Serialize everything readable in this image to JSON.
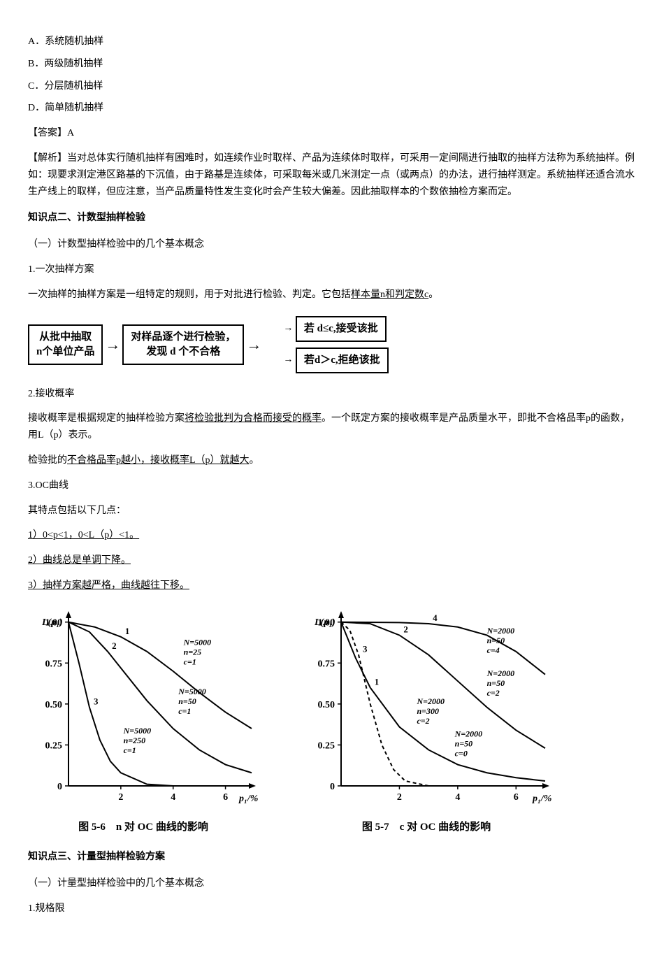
{
  "options": [
    {
      "label": "A．",
      "text": "系统随机抽样"
    },
    {
      "label": "B．",
      "text": "两级随机抽样"
    },
    {
      "label": "C．",
      "text": "分层随机抽样"
    },
    {
      "label": "D．",
      "text": "简单随机抽样"
    }
  ],
  "answer_label": "【答案】",
  "answer_value": "A",
  "analysis_label": "【解析】",
  "analysis_text": "当对总体实行随机抽样有困难时，如连续作业时取样、产品为连续体时取样，可采用一定间隔进行抽取的抽样方法称为系统抽样。例如：现要求测定港区路基的下沉值，由于路基是连续体，可采取每米或几米测定一点（或两点）的办法，进行抽样测定。系统抽样还适合流水生产线上的取样，但应注意，当产品质量特性发生变化时会产生较大偏差。因此抽取样本的个数依抽检方案而定。",
  "kp2_title": "知识点二、计数型抽样检验",
  "kp2_sub1": "（一）计数型抽样检验中的几个基本概念",
  "item1_num": "1.",
  "item1_title": "一次抽样方案",
  "item1_desc_a": "一次抽样的抽样方案是一组特定的规则，用于对批进行检验、判定。它包括",
  "item1_desc_b": "样本量n和判定数c",
  "item1_desc_c": "。",
  "flow": {
    "box1_l1": "从批中抽取",
    "box1_l2": "n个单位产品",
    "box2_l1": "对样品逐个进行检验，",
    "box2_l2": "发现 d 个不合格",
    "box3": "若 d≤c,接受该批",
    "box4": "若d＞c,拒绝该批"
  },
  "item2_num": "2.",
  "item2_title": "接收概率",
  "item2_p1a": "接收概率是根据规定的抽样检验方案",
  "item2_p1b": "将检验批判为合格而接受的概率",
  "item2_p1c": "。一个既定方案的接收概率是产品质量水平，即批不合格品率p的函数，用L（p）表示。",
  "item2_p2a": "检验批的",
  "item2_p2b": "不合格品率p越小，接收概率L（p）就越大",
  "item2_p2c": "。",
  "item3_num": "3.",
  "item3_title": "OC曲线",
  "item3_intro": "其特点包括以下几点：",
  "oc_pts": [
    "1）0<p<1，0<L（p）<1。",
    "2）曲线总是单调下降。",
    "3）抽样方案越严格，曲线越往下移。"
  ],
  "fig56_caption": "图 5-6　n 对 OC 曲线的影响",
  "fig57_caption": "图 5-7　c 对 OC 曲线的影响",
  "chart56": {
    "type": "line",
    "xlabel": "p₁/%",
    "ylabel": "L(p₁)",
    "xlim": [
      0,
      7
    ],
    "ylim": [
      0,
      1.05
    ],
    "xticks": [
      2,
      4,
      6
    ],
    "yticks": [
      0,
      0.25,
      0.5,
      0.75,
      1.0
    ],
    "line_color": "#000000",
    "axis_color": "#000000",
    "line_width": 2,
    "series": [
      {
        "label": "1",
        "annot": "N=5000\nn=25\nc=1",
        "annot_xy": [
          4.4,
          0.86
        ],
        "pts": [
          [
            0,
            1
          ],
          [
            1,
            0.97
          ],
          [
            2,
            0.91
          ],
          [
            3,
            0.82
          ],
          [
            4,
            0.7
          ],
          [
            5,
            0.57
          ],
          [
            6,
            0.45
          ],
          [
            7,
            0.35
          ]
        ]
      },
      {
        "label": "2",
        "annot": "N=5000\nn=50\nc=1",
        "annot_xy": [
          4.2,
          0.56
        ],
        "pts": [
          [
            0,
            1
          ],
          [
            0.8,
            0.94
          ],
          [
            1.5,
            0.82
          ],
          [
            2,
            0.72
          ],
          [
            3,
            0.52
          ],
          [
            4,
            0.35
          ],
          [
            5,
            0.22
          ],
          [
            6,
            0.13
          ],
          [
            7,
            0.08
          ]
        ]
      },
      {
        "label": "3",
        "annot": "N=5000\nn=250\nc=1",
        "annot_xy": [
          2.1,
          0.32
        ],
        "pts": [
          [
            0,
            1
          ],
          [
            0.4,
            0.75
          ],
          [
            0.8,
            0.48
          ],
          [
            1.2,
            0.28
          ],
          [
            1.6,
            0.15
          ],
          [
            2,
            0.08
          ],
          [
            3,
            0.01
          ],
          [
            4,
            0
          ]
        ]
      }
    ]
  },
  "chart57": {
    "type": "line",
    "xlabel": "p₁/%",
    "ylabel": "L(p₁)",
    "xlim": [
      0,
      7
    ],
    "ylim": [
      0,
      1.05
    ],
    "xticks": [
      2,
      4,
      6
    ],
    "yticks": [
      0,
      0.25,
      0.5,
      0.75,
      1.0
    ],
    "line_color": "#000000",
    "axis_color": "#000000",
    "line_width": 2,
    "series": [
      {
        "label": "4",
        "annot": "N=2000\nn=50\nc=4",
        "annot_xy": [
          5.0,
          0.93
        ],
        "pts": [
          [
            0,
            1
          ],
          [
            2,
            0.997
          ],
          [
            3,
            0.99
          ],
          [
            4,
            0.97
          ],
          [
            5,
            0.92
          ],
          [
            6,
            0.82
          ],
          [
            7,
            0.68
          ]
        ]
      },
      {
        "label": "2",
        "annot": "N=2000\nn=50\nc=2",
        "annot_xy": [
          5.0,
          0.67
        ],
        "pts": [
          [
            0,
            1
          ],
          [
            1,
            0.99
          ],
          [
            2,
            0.92
          ],
          [
            3,
            0.8
          ],
          [
            4,
            0.64
          ],
          [
            5,
            0.48
          ],
          [
            6,
            0.34
          ],
          [
            7,
            0.23
          ]
        ]
      },
      {
        "label": "3",
        "annot": "N=2000\nn=300\nc=2",
        "annot_xy": [
          2.6,
          0.5
        ],
        "dash": "5,4",
        "pts": [
          [
            0,
            1
          ],
          [
            0.3,
            0.95
          ],
          [
            0.6,
            0.8
          ],
          [
            1,
            0.5
          ],
          [
            1.4,
            0.25
          ],
          [
            1.8,
            0.1
          ],
          [
            2.2,
            0.03
          ],
          [
            3,
            0
          ]
        ]
      },
      {
        "label": "1",
        "annot": "N=2000\nn=50\nc=0",
        "annot_xy": [
          3.9,
          0.3
        ],
        "pts": [
          [
            0,
            1
          ],
          [
            0.5,
            0.78
          ],
          [
            1,
            0.6
          ],
          [
            2,
            0.36
          ],
          [
            3,
            0.22
          ],
          [
            4,
            0.13
          ],
          [
            5,
            0.08
          ],
          [
            6,
            0.05
          ],
          [
            7,
            0.03
          ]
        ]
      }
    ]
  },
  "kp3_title": "知识点三、计量型抽样检验方案",
  "kp3_sub1": "（一）计量型抽样检验中的几个基本概念",
  "kp3_item1_num": "1.",
  "kp3_item1_title": "规格限"
}
